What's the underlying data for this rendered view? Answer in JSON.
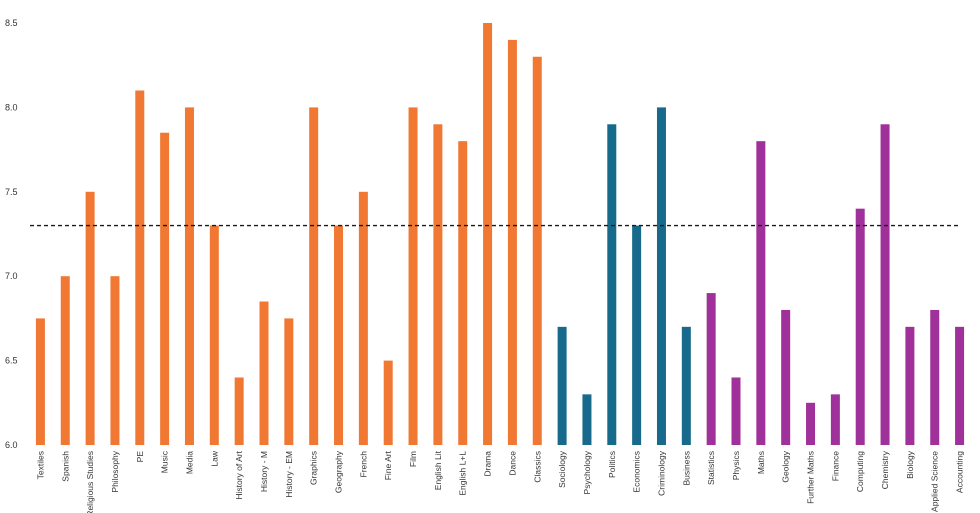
{
  "chart_data": {
    "type": "bar",
    "title": "",
    "xlabel": "",
    "ylabel": "",
    "ylim": [
      6.0,
      8.5
    ],
    "yticks": [
      "6.0",
      "6.5",
      "7.0",
      "7.5",
      "8.0",
      "8.5"
    ],
    "grid": false,
    "reference_line": {
      "value": 7.3,
      "style": "dashed",
      "color": "#1a1a1a"
    },
    "groups": [
      {
        "color": "#f07832",
        "categories": [
          "Textiles",
          "Spanish",
          "Religious Studies",
          "Philosophy",
          "PE",
          "Music",
          "Media",
          "Law",
          "History of Art",
          "History - M",
          "History - EM",
          "Graphics",
          "Geography",
          "French",
          "Fine Art",
          "Film",
          "English Lit",
          "English L+L",
          "Drama",
          "Dance",
          "Classics"
        ]
      },
      {
        "color": "#176a8c",
        "categories": [
          "Sociology",
          "Psychology",
          "Politics",
          "Economics",
          "Criminology",
          "Business"
        ]
      },
      {
        "color": "#a0309a",
        "categories": [
          "Statistics",
          "Physics",
          "Maths",
          "Geology",
          "Further Maths",
          "Finance",
          "Computing",
          "Chemistry",
          "Biology",
          "Applied Science",
          "Accounting"
        ]
      }
    ],
    "categories": [
      "Textiles",
      "Spanish",
      "Religious Studies",
      "Philosophy",
      "PE",
      "Music",
      "Media",
      "Law",
      "History of Art",
      "History - M",
      "History - EM",
      "Graphics",
      "Geography",
      "French",
      "Fine Art",
      "Film",
      "English Lit",
      "English L+L",
      "Drama",
      "Dance",
      "Classics",
      "Sociology",
      "Psychology",
      "Politics",
      "Economics",
      "Criminology",
      "Business",
      "Statistics",
      "Physics",
      "Maths",
      "Geology",
      "Further Maths",
      "Finance",
      "Computing",
      "Chemistry",
      "Biology",
      "Applied Science",
      "Accounting"
    ],
    "values": [
      6.75,
      7.0,
      7.5,
      7.0,
      8.1,
      7.85,
      8.0,
      7.3,
      6.4,
      6.85,
      6.75,
      8.0,
      7.3,
      7.5,
      6.5,
      8.0,
      7.9,
      7.8,
      8.5,
      8.4,
      8.3,
      6.7,
      6.3,
      7.9,
      7.3,
      8.0,
      6.7,
      6.9,
      6.4,
      7.8,
      6.8,
      6.25,
      6.3,
      7.4,
      7.9,
      6.7,
      6.8,
      6.7
    ]
  }
}
